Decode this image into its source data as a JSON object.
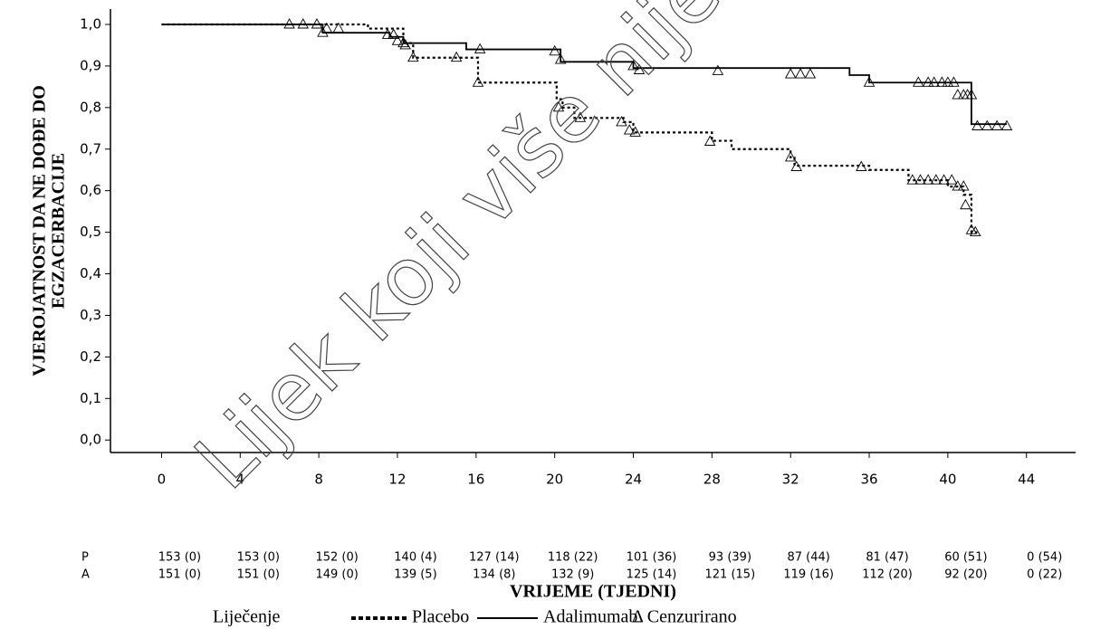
{
  "chart_data": {
    "type": "kaplan-meier",
    "watermark": "Lijek koji više nije",
    "ylabel": [
      "VJEROJATNOST DA NE DOĐE DO",
      "EGZACERBACIJE"
    ],
    "xlabel": "VRIJEME (TJEDNI)",
    "xlim": [
      -2.6,
      46.5
    ],
    "ylim": [
      -0.03,
      1.037
    ],
    "xticks": [
      0,
      4,
      8,
      12,
      16,
      20,
      24,
      28,
      32,
      36,
      40,
      44
    ],
    "yticks": [
      {
        "value": 0,
        "label": "0,0"
      },
      {
        "value": 0.1,
        "label": "0,1"
      },
      {
        "value": 0.2,
        "label": "0,2"
      },
      {
        "value": 0.3,
        "label": "0,3"
      },
      {
        "value": 0.4,
        "label": "0,4"
      },
      {
        "value": 0.5,
        "label": "0,5"
      },
      {
        "value": 0.6,
        "label": "0,6"
      },
      {
        "value": 0.7,
        "label": "0,7"
      },
      {
        "value": 0.8,
        "label": "0,8"
      },
      {
        "value": 0.9,
        "label": "0,9"
      },
      {
        "value": 1.0,
        "label": "1,0"
      }
    ],
    "series": [
      {
        "name": "Placebo",
        "style": "dotted",
        "color": "#000000",
        "x": [
          0,
          10.5,
          12.3,
          12.8,
          16.1,
          20.1,
          20.4,
          21,
          23.5,
          24,
          28,
          29,
          32,
          32.2,
          36,
          38,
          40,
          40.8,
          41.2,
          41.5
        ],
        "values": [
          1.0,
          0.99,
          0.955,
          0.92,
          0.86,
          0.82,
          0.8,
          0.775,
          0.765,
          0.74,
          0.72,
          0.7,
          0.68,
          0.66,
          0.65,
          0.625,
          0.61,
          0.59,
          0.5,
          0.5
        ],
        "censored_x": [
          6.5,
          7.2,
          7.9,
          8.4,
          9.0,
          11.8,
          12.3,
          12.8,
          15.0,
          16.1,
          20.2,
          21.3,
          23.4,
          23.8,
          24.1,
          27.9,
          32.0,
          32.3,
          35.6,
          38.2,
          38.6,
          39.0,
          39.4,
          39.8,
          40.2,
          40.5,
          40.8,
          40.9,
          41.2,
          41.4
        ],
        "censored_values": [
          1.0,
          1.0,
          1.0,
          0.99,
          0.99,
          0.975,
          0.955,
          0.92,
          0.92,
          0.86,
          0.8,
          0.775,
          0.765,
          0.745,
          0.74,
          0.718,
          0.68,
          0.657,
          0.657,
          0.625,
          0.625,
          0.625,
          0.625,
          0.625,
          0.625,
          0.61,
          0.61,
          0.565,
          0.505,
          0.5
        ]
      },
      {
        "name": "Adalimumab",
        "style": "solid",
        "color": "#000000",
        "x": [
          0,
          8.2,
          11.6,
          12.3,
          15.5,
          20.3,
          24,
          35,
          36,
          41.2,
          43
        ],
        "values": [
          1.0,
          0.98,
          0.97,
          0.955,
          0.94,
          0.91,
          0.895,
          0.878,
          0.86,
          0.76,
          0.76
        ],
        "censored_x": [
          8.2,
          11.5,
          12.0,
          12.4,
          16.2,
          20.0,
          20.3,
          24.0,
          24.3,
          28.3,
          32.0,
          32.5,
          33.0,
          36.0,
          38.5,
          39.0,
          39.3,
          39.7,
          40.0,
          40.3,
          40.5,
          40.8,
          41.0,
          41.2,
          41.5,
          42.0,
          42.5,
          43.0
        ],
        "censored_values": [
          0.98,
          0.975,
          0.96,
          0.95,
          0.94,
          0.935,
          0.915,
          0.9,
          0.89,
          0.888,
          0.88,
          0.88,
          0.88,
          0.86,
          0.86,
          0.86,
          0.86,
          0.86,
          0.86,
          0.86,
          0.83,
          0.83,
          0.83,
          0.83,
          0.755,
          0.755,
          0.755,
          0.755
        ]
      }
    ],
    "risk_table": [
      {
        "label": "P",
        "cells": [
          "153 (0)",
          "153 (0)",
          "152 (0)",
          "140 (4)",
          "127 (14)",
          "118 (22)",
          "101 (36)",
          "93 (39)",
          "87 (44)",
          "81 (47)",
          "60 (51)",
          "0 (54)"
        ]
      },
      {
        "label": "A",
        "cells": [
          "151 (0)",
          "151 (0)",
          "149 (0)",
          "139 (5)",
          "134 (8)",
          "132 (9)",
          "125 (14)",
          "121 (15)",
          "119 (16)",
          "112 (20)",
          "92 (20)",
          "0 (22)"
        ]
      }
    ],
    "legend": {
      "title": "Liječenje",
      "censored": "Δ Cenzurirano"
    }
  }
}
